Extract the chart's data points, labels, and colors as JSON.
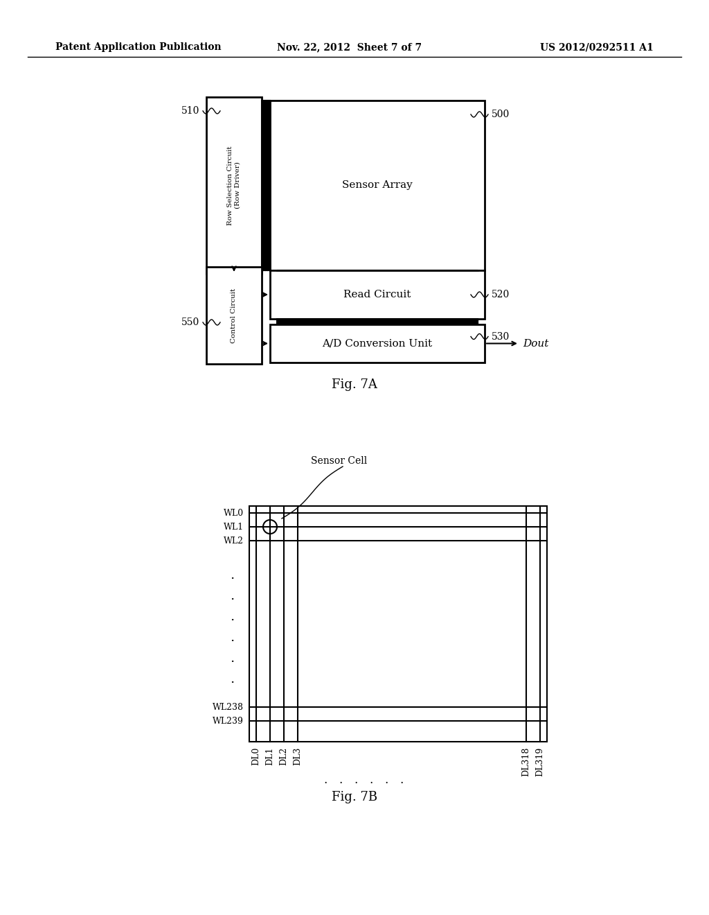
{
  "bg_color": "#ffffff",
  "header_left": "Patent Application Publication",
  "header_mid": "Nov. 22, 2012  Sheet 7 of 7",
  "header_right": "US 2012/0292511 A1",
  "fig7a_label": "Fig. 7A",
  "fig7b_label": "Fig. 7B",
  "sensor_array_text": "Sensor Array",
  "read_circuit_text": "Read Circuit",
  "ad_conversion_text": "A/D Conversion Unit",
  "row_selection_text": "Row Selection Circuit\n(Row Driver)",
  "control_circuit_text": "Control Circuit",
  "label_500": "500",
  "label_510": "510",
  "label_520": "520",
  "label_530": "530",
  "label_550": "550",
  "dout_text": "Dout",
  "sensor_cell_text": "Sensor Cell",
  "wl_labels": [
    "WL0",
    "WL1",
    "WL2",
    "WL238",
    "WL239"
  ],
  "dl_labels": [
    "DL0",
    "DL1",
    "DL2",
    "DL3",
    "DL318",
    "DL319"
  ],
  "dots_row": ". . . . . .",
  "dots_col": [
    ".",
    ".",
    ".",
    ".",
    ".",
    "."
  ]
}
